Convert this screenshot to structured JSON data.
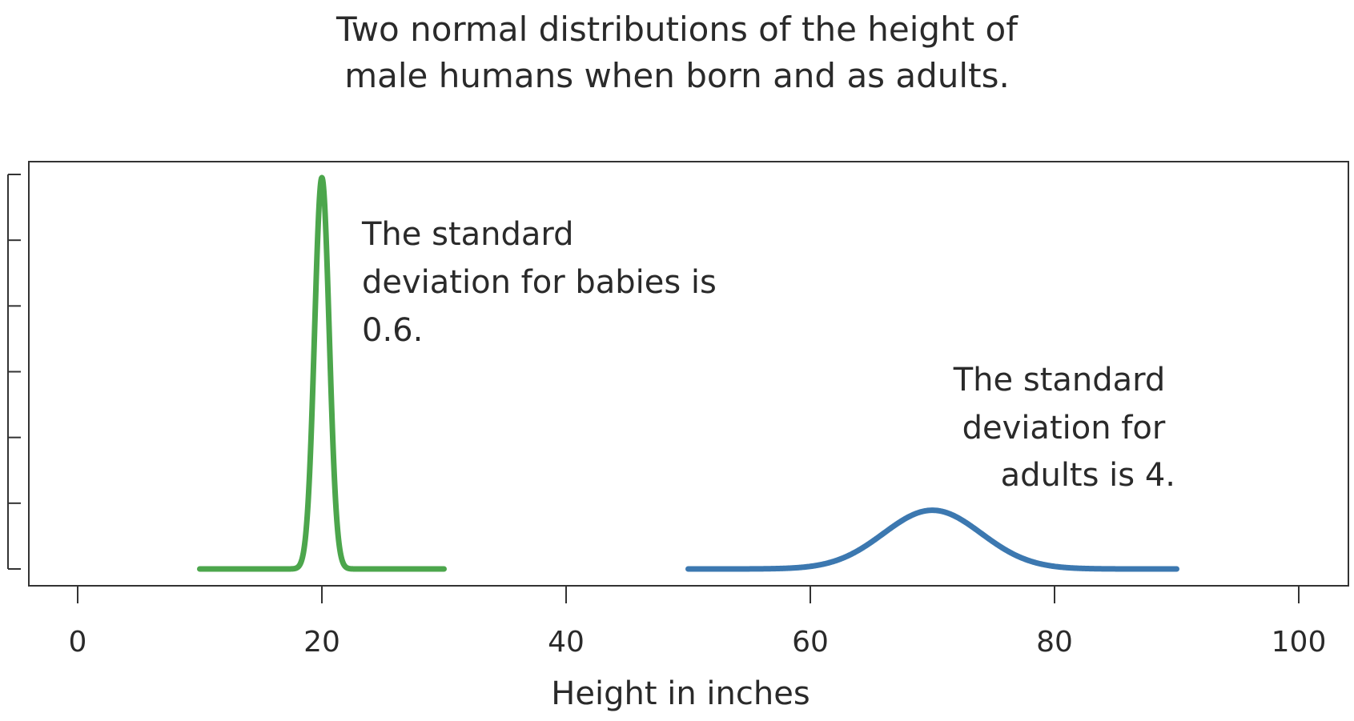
{
  "chart_data": {
    "type": "line",
    "title": [
      "Two normal distributions of the height of",
      "male humans when born and as adults."
    ],
    "xlabel": "Height in inches",
    "ylabel": "",
    "xlim": [
      -5,
      102
    ],
    "x_ticks": [
      0,
      20,
      40,
      60,
      80,
      100
    ],
    "x_tick_labels": [
      "0",
      "20",
      "40",
      "60",
      "80",
      "100"
    ],
    "y_tick_count": 7,
    "y_tick_labels": [],
    "grid": false,
    "legend": "none",
    "series": [
      {
        "distribution": "normal",
        "mean": 20,
        "sd": 0.6,
        "x_range": [
          10,
          30
        ],
        "color": "#4ca64c"
      },
      {
        "distribution": "normal",
        "mean": 70,
        "sd": 4,
        "x_range": [
          50,
          90
        ],
        "color": "#3c78b0"
      }
    ],
    "annotations": [
      {
        "lines": [
          "The standard",
          "deviation for babies is",
          "0.6."
        ],
        "align": "left"
      },
      {
        "lines": [
          "The standard",
          "deviation for",
          "adults is 4."
        ],
        "align": "right"
      }
    ]
  }
}
